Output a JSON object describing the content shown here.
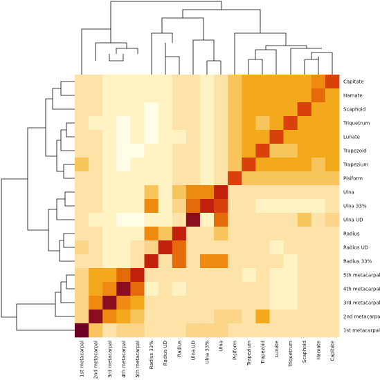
{
  "chart_data": {
    "type": "heatmap",
    "title": "",
    "row_labels": [
      "Capitate",
      "Hamate",
      "Scaphoid",
      "Triquetrum",
      "Lunate",
      "Trapezoid",
      "Trapezium",
      "Pisiform",
      "Ulna",
      "Ulna 33%",
      "Ulna UD",
      "Radius",
      "Radius UD",
      "Radius 33%",
      "5th metacarpal",
      "4th metacarpal",
      "3rd metacarpal",
      "2nd metacarpal",
      "1st metacarpal"
    ],
    "col_labels": [
      "1st metacarpal",
      "2nd metacarpal",
      "3rd metacarpal",
      "4th metacarpal",
      "5th metacarpal",
      "Radius 33%",
      "Radius UD",
      "Radius",
      "Ulna UD",
      "Ulna 33%",
      "Ulna",
      "Pisiform",
      "Trapezium",
      "Trapezoid",
      "Lunate",
      "Triquetrum",
      "Scaphoid",
      "Hamate",
      "Capitate"
    ],
    "color_scale": [
      "#fffde8",
      "#fff3c4",
      "#fde3a8",
      "#fbd48a",
      "#f7c55c",
      "#f4a81c",
      "#ee8a10",
      "#e56a0a",
      "#d8420a",
      "#c0200c",
      "#8c0d1e",
      "#6b0024"
    ],
    "values": [
      [
        2,
        2,
        1,
        1,
        1,
        1,
        1,
        2,
        2,
        1,
        2,
        4,
        5,
        5,
        5,
        5,
        5,
        6,
        8
      ],
      [
        2,
        2,
        1,
        1,
        1,
        1,
        1,
        2,
        2,
        1,
        2,
        4,
        5,
        5,
        5,
        5,
        5,
        7,
        5
      ],
      [
        2,
        2,
        1,
        1,
        1,
        0,
        1,
        2,
        2,
        1,
        2,
        4,
        5,
        5,
        5,
        5,
        8,
        5,
        5
      ],
      [
        2,
        1,
        1,
        0,
        1,
        0,
        1,
        2,
        2,
        1,
        2,
        4,
        5,
        4,
        5,
        8,
        5,
        5,
        5
      ],
      [
        2,
        2,
        1,
        0,
        1,
        0,
        1,
        1,
        2,
        1,
        2,
        4,
        5,
        5,
        8,
        5,
        5,
        5,
        5
      ],
      [
        2,
        2,
        1,
        0,
        0,
        1,
        1,
        2,
        2,
        1,
        2,
        4,
        5,
        8,
        4,
        4,
        5,
        5,
        5
      ],
      [
        4,
        2,
        1,
        0,
        1,
        1,
        1,
        2,
        2,
        1,
        2,
        4,
        8,
        5,
        5,
        5,
        5,
        4,
        5
      ],
      [
        2,
        2,
        1,
        1,
        1,
        1,
        1,
        2,
        2,
        1,
        2,
        8,
        4,
        4,
        4,
        4,
        4,
        4,
        4
      ],
      [
        2,
        2,
        1,
        1,
        1,
        4,
        1,
        4,
        6,
        6,
        9,
        2,
        2,
        2,
        2,
        2,
        2,
        2,
        2
      ],
      [
        2,
        2,
        1,
        1,
        1,
        6,
        1,
        3,
        7,
        9,
        8,
        2,
        2,
        1,
        1,
        1,
        1,
        1,
        2
      ],
      [
        2,
        1,
        1,
        0,
        0,
        1,
        1,
        2,
        10,
        1,
        7,
        2,
        2,
        2,
        2,
        2,
        4,
        2,
        3
      ],
      [
        2,
        2,
        1,
        1,
        1,
        6,
        4,
        9,
        2,
        2,
        4,
        2,
        2,
        2,
        2,
        2,
        2,
        2,
        2
      ],
      [
        3,
        2,
        1,
        1,
        2,
        3,
        9,
        7,
        2,
        2,
        2,
        2,
        2,
        2,
        1,
        2,
        2,
        2,
        2
      ],
      [
        2,
        2,
        1,
        1,
        2,
        9,
        2,
        7,
        2,
        6,
        6,
        2,
        2,
        2,
        2,
        1,
        2,
        2,
        2
      ],
      [
        3,
        5,
        5,
        7,
        9,
        2,
        2,
        2,
        2,
        2,
        2,
        2,
        1,
        2,
        1,
        1,
        2,
        2,
        2
      ],
      [
        3,
        5,
        6,
        10,
        7,
        1,
        2,
        1,
        2,
        2,
        2,
        2,
        2,
        2,
        1,
        1,
        2,
        2,
        2
      ],
      [
        3,
        6,
        10,
        6,
        5,
        2,
        2,
        2,
        2,
        2,
        2,
        2,
        2,
        2,
        1,
        1,
        2,
        2,
        2
      ],
      [
        3,
        10,
        6,
        5,
        4,
        2,
        2,
        2,
        2,
        2,
        3,
        3,
        2,
        5,
        2,
        2,
        2,
        2,
        2
      ],
      [
        11,
        4,
        2,
        3,
        3,
        2,
        2,
        2,
        3,
        3,
        3,
        2,
        2,
        2,
        2,
        2,
        2,
        2,
        2
      ]
    ]
  }
}
